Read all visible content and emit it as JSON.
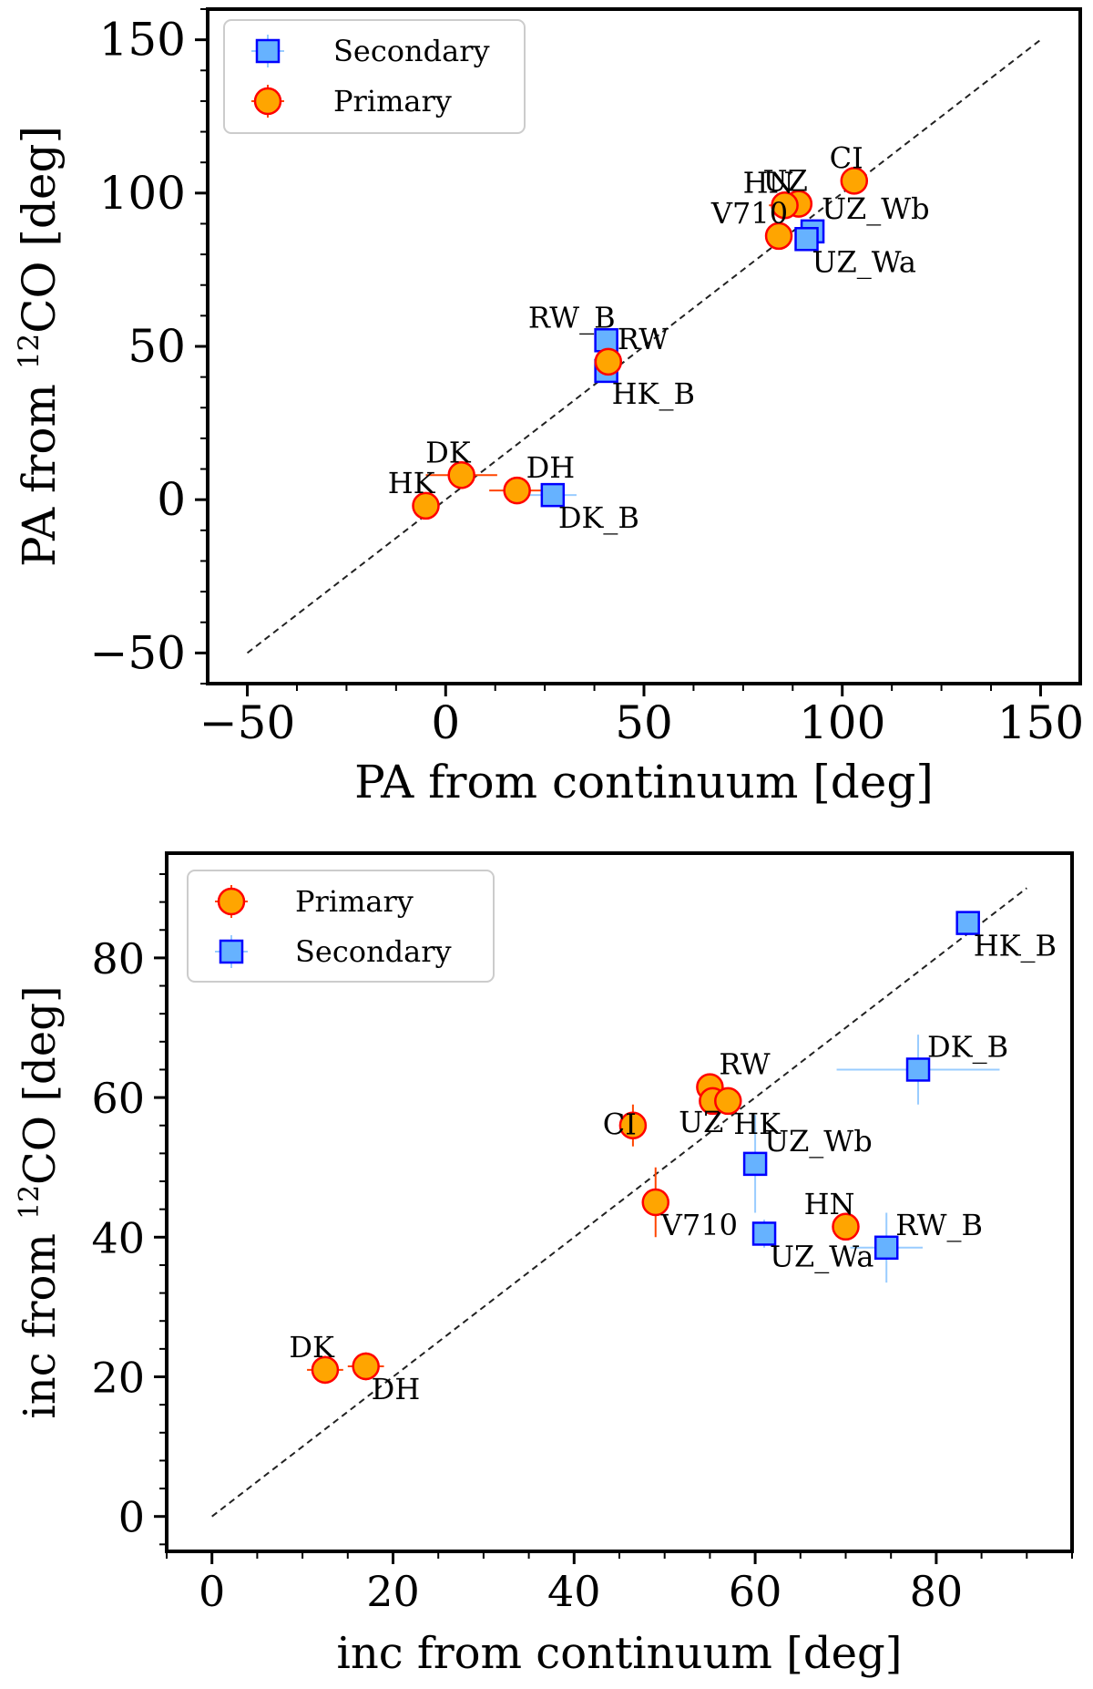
{
  "chart_data": [
    {
      "type": "scatter",
      "title": "",
      "xlabel": "PA from continuum [deg]",
      "ylabel_prefix": "PA from ",
      "ylabel_sup": "12",
      "ylabel_suffix": "CO [deg]",
      "xlim": [
        -60,
        160
      ],
      "ylim": [
        -60,
        160
      ],
      "xticks": [
        -50,
        0,
        50,
        100,
        150
      ],
      "yticks": [
        -50,
        0,
        50,
        100,
        150
      ],
      "xtick_labels": [
        "−50",
        "0",
        "50",
        "100",
        "150"
      ],
      "ytick_labels": [
        "−50",
        "0",
        "50",
        "100",
        "150"
      ],
      "reference_line": {
        "style": "dashed",
        "from": [
          -50,
          -50
        ],
        "to": [
          150,
          150
        ]
      },
      "legend": {
        "position": "top-left",
        "entries": [
          {
            "label": "Secondary",
            "series": "secondary"
          },
          {
            "label": "Primary",
            "series": "primary"
          }
        ]
      },
      "series": [
        {
          "name": "Secondary",
          "key": "secondary",
          "marker": "square",
          "points": [
            {
              "label": "UZ_Wb",
              "x": 92.5,
              "y": 87.5,
              "xerr": 3,
              "yerr": 4,
              "label_anchor": "right-up"
            },
            {
              "label": "UZ_Wa",
              "x": 91,
              "y": 85,
              "xerr": 3,
              "yerr": 3,
              "label_anchor": "right-down"
            },
            {
              "label": "RW_B",
              "x": 40.5,
              "y": 52,
              "xerr": 1,
              "yerr": 2,
              "label_anchor": "left-up"
            },
            {
              "label": "HK_B",
              "x": 40.5,
              "y": 42,
              "xerr": 1,
              "yerr": 2,
              "label_anchor": "right-down"
            },
            {
              "label": "DK_B",
              "x": 27,
              "y": 1.5,
              "xerr": 6,
              "yerr": 2,
              "label_anchor": "right-down"
            }
          ]
        },
        {
          "name": "Primary",
          "key": "primary",
          "marker": "circle",
          "points": [
            {
              "label": "CI",
              "x": 103,
              "y": 104,
              "xerr": 1,
              "yerr": 1,
              "label_anchor": "left-up"
            },
            {
              "label": "UZ",
              "x": 89,
              "y": 96.5,
              "xerr": 2,
              "yerr": 2,
              "label_anchor": "left-up"
            },
            {
              "label": "HN",
              "x": 85.5,
              "y": 96,
              "xerr": 4,
              "yerr": 2,
              "label_anchor": "left-up"
            },
            {
              "label": "V710",
              "x": 84,
              "y": 86,
              "xerr": 1,
              "yerr": 1,
              "label_anchor": "left-up"
            },
            {
              "label": "RW",
              "x": 41,
              "y": 45,
              "xerr": 1,
              "yerr": 1,
              "label_anchor": "right-up"
            },
            {
              "label": "DK",
              "x": 4,
              "y": 8,
              "xerr": 9,
              "yerr": 1,
              "label_anchor": "left-up"
            },
            {
              "label": "DH",
              "x": 18,
              "y": 3,
              "xerr": 7,
              "yerr": 1,
              "label_anchor": "right-up"
            },
            {
              "label": "HK",
              "x": -5,
              "y": -2,
              "xerr": 2,
              "yerr": 1,
              "label_anchor": "left-up"
            }
          ]
        }
      ]
    },
    {
      "type": "scatter",
      "title": "",
      "xlabel": "inc from continuum [deg]",
      "ylabel_prefix": "inc from ",
      "ylabel_sup": "12",
      "ylabel_suffix": "CO [deg]",
      "xlim": [
        -5,
        95
      ],
      "ylim": [
        -5,
        95
      ],
      "xticks": [
        0,
        20,
        40,
        60,
        80
      ],
      "yticks": [
        0,
        20,
        40,
        60,
        80
      ],
      "xtick_labels": [
        "0",
        "20",
        "40",
        "60",
        "80"
      ],
      "ytick_labels": [
        "0",
        "20",
        "40",
        "60",
        "80"
      ],
      "reference_line": {
        "style": "dashed",
        "from": [
          0,
          0
        ],
        "to": [
          90,
          90
        ]
      },
      "legend": {
        "position": "top-left",
        "entries": [
          {
            "label": "Primary",
            "series": "primary"
          },
          {
            "label": "Secondary",
            "series": "secondary"
          }
        ]
      },
      "series": [
        {
          "name": "Primary",
          "key": "primary",
          "marker": "circle",
          "points": [
            {
              "label": "RW",
              "x": 55,
              "y": 61.5,
              "xerr": 0.5,
              "yerr": 1,
              "label_anchor": "right-up"
            },
            {
              "label": "UZ",
              "x": 55.3,
              "y": 59.5,
              "xerr": 0.5,
              "yerr": 1,
              "label_anchor": "left-down"
            },
            {
              "label": "HK",
              "x": 57,
              "y": 59.5,
              "xerr": 0.5,
              "yerr": 1,
              "label_anchor": "right-down"
            },
            {
              "label": "CI",
              "x": 46.5,
              "y": 56,
              "xerr": 0.5,
              "yerr": 3,
              "label_anchor": "left"
            },
            {
              "label": "V710",
              "x": 49,
              "y": 45,
              "xerr": 0.5,
              "yerr": 5,
              "label_anchor": "right-down"
            },
            {
              "label": "HN",
              "x": 70,
              "y": 41.5,
              "xerr": 1,
              "yerr": 1,
              "label_anchor": "left-up"
            },
            {
              "label": "DK",
              "x": 12.5,
              "y": 21,
              "xerr": 2,
              "yerr": 2,
              "label_anchor": "left-up"
            },
            {
              "label": "DH",
              "x": 17,
              "y": 21.5,
              "xerr": 2,
              "yerr": 2,
              "label_anchor": "right-down"
            }
          ]
        },
        {
          "name": "Secondary",
          "key": "secondary",
          "marker": "square",
          "points": [
            {
              "label": "HK_B",
              "x": 83.5,
              "y": 85,
              "xerr": 0.5,
              "yerr": 1,
              "label_anchor": "right-down"
            },
            {
              "label": "DK_B",
              "x": 78,
              "y": 64,
              "xerr": 9,
              "yerr": 5,
              "label_anchor": "right-up"
            },
            {
              "label": "UZ_Wb",
              "x": 60,
              "y": 50.5,
              "xerr": 0.5,
              "yerr": 7,
              "label_anchor": "right-up"
            },
            {
              "label": "UZ_Wa",
              "x": 61,
              "y": 40.5,
              "xerr": 0.5,
              "yerr": 2,
              "label_anchor": "right-down"
            },
            {
              "label": "RW_B",
              "x": 74.5,
              "y": 38.5,
              "xerr": 4,
              "yerr": 5,
              "label_anchor": "right-up"
            }
          ]
        }
      ]
    }
  ],
  "colors": {
    "primary_fill": "#ffa500",
    "primary_edge": "#ff0000",
    "secondary_fill": "#66b2ff",
    "secondary_edge": "#0000ff",
    "secondary_errbar": "#99ccff",
    "primary_errbar": "#ff4500",
    "axes": "#000000",
    "reference_line": "#222222"
  }
}
